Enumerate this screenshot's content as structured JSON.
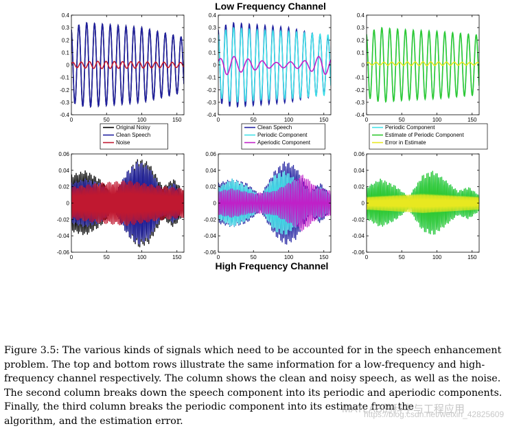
{
  "figure": {
    "top_title": "Low Frequency Channel",
    "bottom_title": "High Frequency Channel"
  },
  "chart_data": [
    {
      "type": "line",
      "id": "low-col1",
      "xlim": [
        0,
        160
      ],
      "ylim": [
        -0.4,
        0.4
      ],
      "xticks": [
        0,
        50,
        100,
        150
      ],
      "yticks": [
        -0.4,
        -0.3,
        -0.2,
        -0.1,
        0,
        0.1,
        0.2,
        0.3,
        0.4
      ],
      "grid": false,
      "legend_position": "below",
      "series": [
        {
          "name": "Original Noisy",
          "color": "#000000",
          "freq": 0.0895,
          "amp_points": [
            [
              0,
              0.3
            ],
            [
              20,
              0.34
            ],
            [
              60,
              0.32
            ],
            [
              100,
              0.3
            ],
            [
              160,
              0.22
            ]
          ],
          "phase": 1.9
        },
        {
          "name": "Clean Speech",
          "color": "#2020a0",
          "freq": 0.0895,
          "amp_points": [
            [
              0,
              0.3
            ],
            [
              20,
              0.34
            ],
            [
              60,
              0.32
            ],
            [
              100,
              0.3
            ],
            [
              160,
              0.22
            ]
          ],
          "phase": 1.9
        },
        {
          "name": "Noise",
          "color": "#c01830",
          "freq": 0.085,
          "amp_points": [
            [
              0,
              0.02
            ],
            [
              40,
              0.03
            ],
            [
              100,
              0.025
            ],
            [
              160,
              0.02
            ]
          ],
          "phase": 0.4
        }
      ]
    },
    {
      "type": "line",
      "id": "low-col2",
      "xlim": [
        0,
        160
      ],
      "ylim": [
        -0.4,
        0.4
      ],
      "xticks": [
        0,
        50,
        100,
        150
      ],
      "yticks": [
        -0.4,
        -0.3,
        -0.2,
        -0.1,
        0,
        0.1,
        0.2,
        0.3,
        0.4
      ],
      "grid": false,
      "legend_position": "below",
      "series": [
        {
          "name": "Clean Speech",
          "color": "#2020a0",
          "freq": 0.0895,
          "amp_points": [
            [
              0,
              0.3
            ],
            [
              20,
              0.34
            ],
            [
              60,
              0.32
            ],
            [
              100,
              0.3
            ],
            [
              160,
              0.22
            ]
          ],
          "phase": 1.9
        },
        {
          "name": "Periodic Component",
          "color": "#40e0e8",
          "freq": 0.0895,
          "amp_points": [
            [
              0,
              0.26
            ],
            [
              20,
              0.3
            ],
            [
              60,
              0.28
            ],
            [
              100,
              0.27
            ],
            [
              160,
              0.24
            ]
          ],
          "phase": 1.9
        },
        {
          "name": "Aperiodic Component",
          "color": "#c020c8",
          "freq": 0.05,
          "amp_points": [
            [
              0,
              0.04
            ],
            [
              10,
              0.08
            ],
            [
              40,
              0.05
            ],
            [
              80,
              0.02
            ],
            [
              120,
              0.03
            ],
            [
              150,
              0.08
            ],
            [
              160,
              0.06
            ]
          ],
          "phase": 0.8,
          "offset": 0.0
        }
      ]
    },
    {
      "type": "line",
      "id": "low-col3",
      "xlim": [
        0,
        160
      ],
      "ylim": [
        -0.4,
        0.4
      ],
      "xticks": [
        0,
        50,
        100,
        150
      ],
      "yticks": [
        -0.4,
        -0.3,
        -0.2,
        -0.1,
        0,
        0.1,
        0.2,
        0.3,
        0.4
      ],
      "grid": false,
      "legend_position": "below",
      "series": [
        {
          "name": "Periodic Component",
          "color": "#40e0e8",
          "freq": 0.0895,
          "amp_points": [
            [
              0,
              0.26
            ],
            [
              20,
              0.3
            ],
            [
              60,
              0.28
            ],
            [
              100,
              0.27
            ],
            [
              160,
              0.24
            ]
          ],
          "phase": 1.9
        },
        {
          "name": "Estimate of Periodic Component",
          "color": "#30c830",
          "freq": 0.0895,
          "amp_points": [
            [
              0,
              0.26
            ],
            [
              20,
              0.3
            ],
            [
              60,
              0.28
            ],
            [
              100,
              0.27
            ],
            [
              160,
              0.24
            ]
          ],
          "phase": 1.9
        },
        {
          "name": "Error in Estimate",
          "color": "#e8e820",
          "freq": 0.09,
          "amp_points": [
            [
              0,
              0.01
            ],
            [
              80,
              0.015
            ],
            [
              160,
              0.01
            ]
          ],
          "phase": 0.2,
          "offset": 0.01
        }
      ]
    },
    {
      "type": "line",
      "id": "high-col1",
      "xlim": [
        0,
        160
      ],
      "ylim": [
        -0.06,
        0.06
      ],
      "xticks": [
        0,
        50,
        100,
        150
      ],
      "yticks": [
        -0.06,
        -0.04,
        -0.02,
        0,
        0.02,
        0.04,
        0.06
      ],
      "grid": false,
      "legend_position": "none",
      "series": [
        {
          "name": "Original Noisy",
          "color": "#000000",
          "freq": 0.47,
          "amp_points": [
            [
              0,
              0.035
            ],
            [
              20,
              0.04
            ],
            [
              40,
              0.03
            ],
            [
              60,
              0.01
            ],
            [
              80,
              0.04
            ],
            [
              95,
              0.055
            ],
            [
              110,
              0.05
            ],
            [
              130,
              0.02
            ],
            [
              145,
              0.03
            ],
            [
              160,
              0.015
            ]
          ],
          "phase": 0.3
        },
        {
          "name": "Clean Speech",
          "color": "#2020a0",
          "freq": 0.47,
          "amp_points": [
            [
              0,
              0.025
            ],
            [
              20,
              0.03
            ],
            [
              40,
              0.025
            ],
            [
              60,
              0.01
            ],
            [
              80,
              0.04
            ],
            [
              95,
              0.052
            ],
            [
              110,
              0.045
            ],
            [
              130,
              0.015
            ],
            [
              145,
              0.025
            ],
            [
              160,
              0.01
            ]
          ],
          "phase": 0.3
        },
        {
          "name": "Noise",
          "color": "#c01830",
          "freq": 0.52,
          "amp_points": [
            [
              0,
              0.02
            ],
            [
              40,
              0.025
            ],
            [
              80,
              0.028
            ],
            [
              120,
              0.022
            ],
            [
              160,
              0.018
            ]
          ],
          "phase": 1.1
        }
      ]
    },
    {
      "type": "line",
      "id": "high-col2",
      "xlim": [
        0,
        160
      ],
      "ylim": [
        -0.06,
        0.06
      ],
      "xticks": [
        0,
        50,
        100,
        150
      ],
      "yticks": [
        -0.06,
        -0.04,
        -0.02,
        0,
        0.02,
        0.04,
        0.06
      ],
      "grid": false,
      "legend_position": "none",
      "series": [
        {
          "name": "Clean Speech",
          "color": "#2020a0",
          "freq": 0.47,
          "amp_points": [
            [
              0,
              0.025
            ],
            [
              20,
              0.03
            ],
            [
              40,
              0.025
            ],
            [
              60,
              0.01
            ],
            [
              80,
              0.04
            ],
            [
              95,
              0.052
            ],
            [
              110,
              0.045
            ],
            [
              130,
              0.015
            ],
            [
              145,
              0.025
            ],
            [
              160,
              0.01
            ]
          ],
          "phase": 0.3
        },
        {
          "name": "Periodic Component",
          "color": "#40e0e8",
          "freq": 0.47,
          "amp_points": [
            [
              0,
              0.02
            ],
            [
              20,
              0.03
            ],
            [
              40,
              0.022
            ],
            [
              60,
              0.008
            ],
            [
              80,
              0.035
            ],
            [
              95,
              0.04
            ],
            [
              110,
              0.03
            ],
            [
              130,
              0.015
            ],
            [
              145,
              0.02
            ],
            [
              160,
              0.01
            ]
          ],
          "phase": 0.3
        },
        {
          "name": "Aperiodic Component",
          "color": "#c020c8",
          "freq": 0.4,
          "amp_points": [
            [
              0,
              0.015
            ],
            [
              20,
              0.018
            ],
            [
              50,
              0.012
            ],
            [
              80,
              0.015
            ],
            [
              100,
              0.025
            ],
            [
              120,
              0.035
            ],
            [
              140,
              0.02
            ],
            [
              160,
              0.015
            ]
          ],
          "phase": 1.4
        }
      ]
    },
    {
      "type": "line",
      "id": "high-col3",
      "xlim": [
        0,
        160
      ],
      "ylim": [
        -0.06,
        0.06
      ],
      "xticks": [
        0,
        50,
        100,
        150
      ],
      "yticks": [
        -0.06,
        -0.04,
        -0.02,
        0,
        0.02,
        0.04,
        0.06
      ],
      "grid": false,
      "legend_position": "none",
      "series": [
        {
          "name": "Periodic Component",
          "color": "#40e0e8",
          "freq": 0.47,
          "amp_points": [
            [
              0,
              0.02
            ],
            [
              20,
              0.03
            ],
            [
              40,
              0.022
            ],
            [
              60,
              0.008
            ],
            [
              80,
              0.035
            ],
            [
              95,
              0.04
            ],
            [
              110,
              0.03
            ],
            [
              130,
              0.015
            ],
            [
              145,
              0.02
            ],
            [
              160,
              0.01
            ]
          ],
          "phase": 0.3
        },
        {
          "name": "Estimate of Periodic Component",
          "color": "#30c830",
          "freq": 0.47,
          "amp_points": [
            [
              0,
              0.02
            ],
            [
              20,
              0.03
            ],
            [
              40,
              0.022
            ],
            [
              60,
              0.008
            ],
            [
              80,
              0.035
            ],
            [
              95,
              0.04
            ],
            [
              110,
              0.03
            ],
            [
              130,
              0.015
            ],
            [
              145,
              0.02
            ],
            [
              160,
              0.01
            ]
          ],
          "phase": 0.3
        },
        {
          "name": "Error in Estimate",
          "color": "#e8e820",
          "freq": 0.5,
          "amp_points": [
            [
              0,
              0.008
            ],
            [
              40,
              0.01
            ],
            [
              80,
              0.012
            ],
            [
              120,
              0.01
            ],
            [
              160,
              0.008
            ]
          ],
          "phase": 0.9
        }
      ]
    }
  ],
  "caption": {
    "lines": [
      "Figure 3.5: The various kinds of signals which need to be accounted for in the speech enhancement",
      "problem. The top and bottom rows illustrate the same information for a low-frequency and high-",
      "frequency channel respectively. The column shows the clean and noisy speech, as well as the noise.",
      "The second column breaks down the speech component into its periodic and aperiodic components.",
      "Finally, the third column breaks the periodic component into its estimate from the",
      "algorithm, and the estimation error."
    ]
  },
  "watermark": {
    "brand": "MATLAB的科学与工程应用",
    "url": "https://blog.csdn.net/weixin_42825609"
  }
}
